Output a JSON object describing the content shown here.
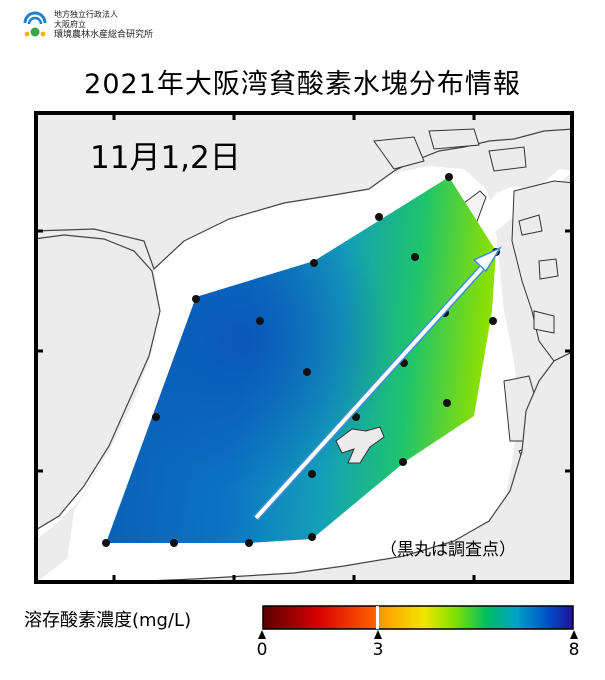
{
  "header": {
    "org_line1": "地方独立行政法人",
    "org_line2": "大阪府立",
    "org_line3": "環境農林水産総合研究所"
  },
  "title": "2021年大阪湾貧酸素水塊分布情報",
  "map": {
    "date_label": "11月1,2日",
    "note": "（黒丸は調査点）",
    "land_color": "#ececec",
    "sea_color": "#ffffff",
    "stations_icon": "black-dot",
    "arrow_icon": "white-arrow"
  },
  "legend": {
    "label": "溶存酸素濃度(mg/L)",
    "unit": "mg/L",
    "min": 0,
    "threshold": 3,
    "max": 8,
    "tick_labels": [
      "0",
      "3",
      "8"
    ],
    "colors": [
      "#6e0000",
      "#ff0000",
      "#ff8a00",
      "#ffe800",
      "#8ee000",
      "#00c060",
      "#00a0c8",
      "#0050c8",
      "#1a1090"
    ]
  }
}
